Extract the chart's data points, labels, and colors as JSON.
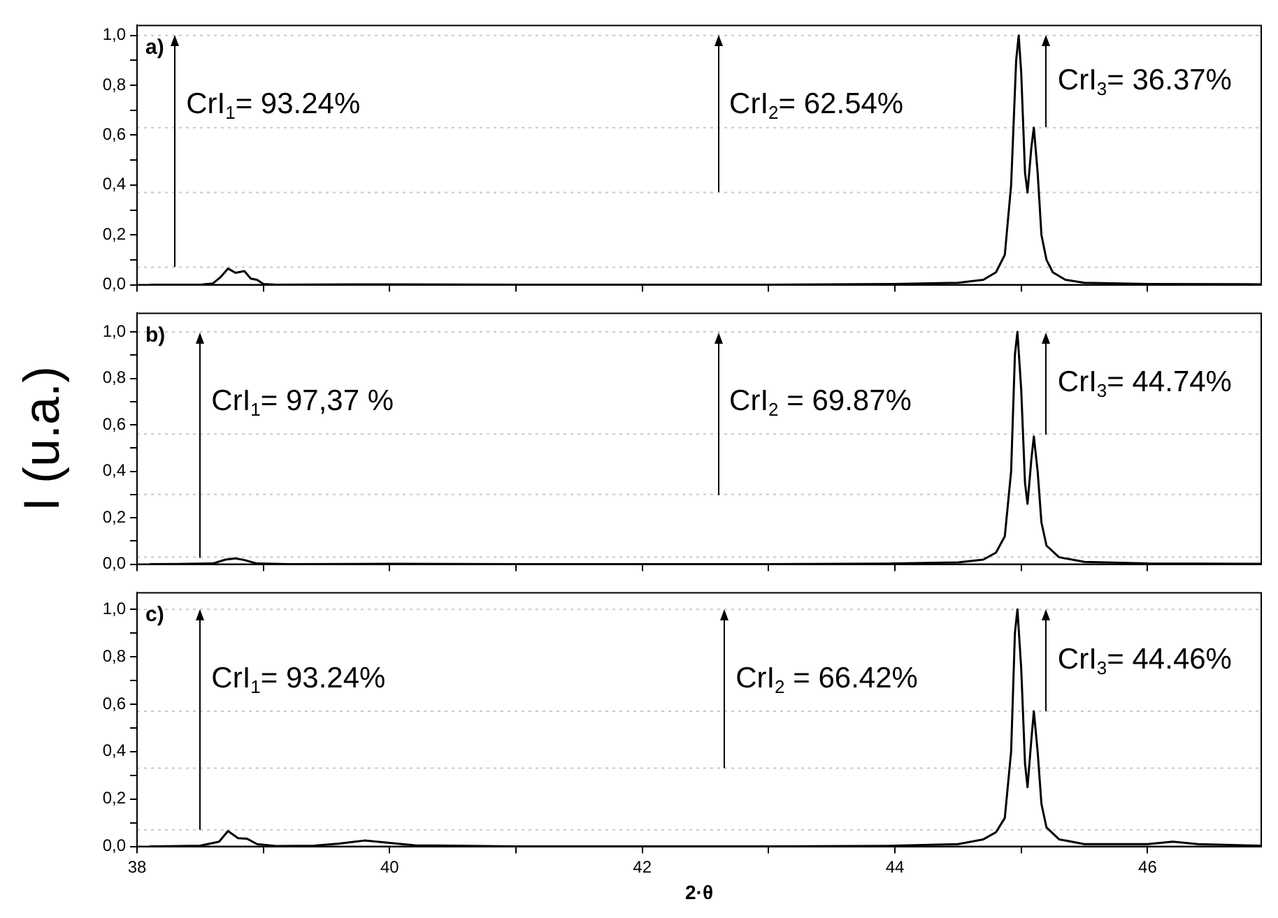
{
  "chart_data": [
    {
      "type": "line",
      "xlim": [
        38,
        46.9
      ],
      "ylim": [
        0,
        1.04
      ],
      "xticks": [
        38,
        {
          "value": 39,
          "label": null
        },
        40,
        {
          "value": 41,
          "label": null
        },
        42,
        {
          "value": 43,
          "label": null
        },
        44,
        {
          "value": 45,
          "label": null
        },
        46
      ],
      "yticks": [
        {
          "value": 0,
          "label": "0,0"
        },
        {
          "value": 0.1,
          "label": null
        },
        {
          "value": 0.2,
          "label": "0,2"
        },
        {
          "value": 0.3,
          "label": null
        },
        {
          "value": 0.4,
          "label": "0,4"
        },
        {
          "value": 0.5,
          "label": null
        },
        {
          "value": 0.6,
          "label": "0,6"
        },
        {
          "value": 0.7,
          "label": null
        },
        {
          "value": 0.8,
          "label": "0,8"
        },
        {
          "value": 0.9,
          "label": null
        },
        {
          "value": 1,
          "label": "1,0"
        }
      ],
      "tick_labels": "y",
      "series": [
        {
          "color": "#000000",
          "x": [
            38.1,
            38.5,
            38.6,
            38.66,
            38.72,
            38.78,
            38.85,
            38.9,
            38.95,
            39,
            39.1,
            40,
            41,
            42,
            43,
            44,
            44.5,
            44.7,
            44.8,
            44.87,
            44.92,
            44.96,
            44.98,
            45,
            45.03,
            45.05,
            45.08,
            45.1,
            45.13,
            45.16,
            45.2,
            45.25,
            45.35,
            45.5,
            46,
            46.9
          ],
          "values": [
            0,
            0,
            0.005,
            0.03,
            0.065,
            0.048,
            0.055,
            0.025,
            0.02,
            0.003,
            0,
            0.002,
            0,
            0,
            0,
            0.003,
            0.008,
            0.02,
            0.05,
            0.12,
            0.4,
            0.9,
            1,
            0.85,
            0.45,
            0.37,
            0.55,
            0.63,
            0.45,
            0.2,
            0.1,
            0.05,
            0.02,
            0.008,
            0.003,
            0.002
          ]
        }
      ],
      "ref_lines": [
        {
          "axis": "y",
          "value": 1,
          "color": "#c8c8c8",
          "line_style": "dotted"
        },
        {
          "axis": "y",
          "value": 0.07,
          "color": "#c8c8c8",
          "line_style": "dotted"
        },
        {
          "axis": "y",
          "value": 0.37,
          "color": "#c8c8c8",
          "line_style": "dotted"
        },
        {
          "axis": "y",
          "value": 0.63,
          "color": "#c8c8c8",
          "line_style": "dotted"
        }
      ],
      "annotations": [
        "a)",
        {
          "text": "CrI$_{1}$= 93.24%",
          "x": 38.3,
          "y": 1
        },
        {
          "text": "CrI$_{2}$= 62.54%",
          "x": 42.6,
          "y": 1
        },
        {
          "text": "CrI$_{3}$= 36.37%",
          "x": 45.2,
          "y": 1
        }
      ]
    },
    {
      "type": "line",
      "xlim": [
        38,
        46.9
      ],
      "ylim": [
        0,
        1.08
      ],
      "ylabel": "I (u.a.)",
      "xticks": [
        38,
        {
          "value": 39,
          "label": null
        },
        40,
        {
          "value": 41,
          "label": null
        },
        42,
        {
          "value": 43,
          "label": null
        },
        44,
        {
          "value": 45,
          "label": null
        },
        46
      ],
      "yticks": [
        {
          "value": 0,
          "label": "0,0"
        },
        {
          "value": 0.1,
          "label": null
        },
        {
          "value": 0.2,
          "label": "0,2"
        },
        {
          "value": 0.3,
          "label": null
        },
        {
          "value": 0.4,
          "label": "0,4"
        },
        {
          "value": 0.5,
          "label": null
        },
        {
          "value": 0.6,
          "label": "0,6"
        },
        {
          "value": 0.7,
          "label": null
        },
        {
          "value": 0.8,
          "label": "0,8"
        },
        {
          "value": 0.9,
          "label": null
        },
        {
          "value": 1,
          "label": "1,0"
        }
      ],
      "tick_labels": "y",
      "series": [
        {
          "color": "#000000",
          "x": [
            38.1,
            38.6,
            38.7,
            38.78,
            38.85,
            38.95,
            39.2,
            40,
            41,
            43,
            44,
            44.5,
            44.7,
            44.8,
            44.87,
            44.92,
            44.95,
            44.97,
            45,
            45.03,
            45.05,
            45.08,
            45.1,
            45.13,
            45.16,
            45.2,
            45.3,
            45.5,
            46,
            46.9
          ],
          "values": [
            0,
            0.003,
            0.02,
            0.025,
            0.018,
            0.003,
            0,
            0.002,
            0,
            0,
            0.003,
            0.008,
            0.02,
            0.05,
            0.12,
            0.4,
            0.9,
            1,
            0.75,
            0.35,
            0.26,
            0.45,
            0.55,
            0.4,
            0.18,
            0.08,
            0.03,
            0.01,
            0.003,
            0.002
          ]
        }
      ],
      "ref_lines": [
        {
          "axis": "y",
          "value": 1,
          "color": "#c8c8c8",
          "line_style": "dotted"
        },
        {
          "axis": "y",
          "value": 0.03,
          "color": "#c8c8c8",
          "line_style": "dotted"
        },
        {
          "axis": "y",
          "value": 0.3,
          "color": "#c8c8c8",
          "line_style": "dotted"
        },
        {
          "axis": "y",
          "value": 0.56,
          "color": "#c8c8c8",
          "line_style": "dotted"
        }
      ],
      "annotations": [
        "b)",
        {
          "text": "CrI$_{1}$= 97,37 %",
          "x": 38.5,
          "y": 1
        },
        {
          "text": "CrI$_{2}$ = 69.87%",
          "x": 42.6,
          "y": 1
        },
        {
          "text": "CrI$_{3}$= 44.74%",
          "x": 45.2,
          "y": 1
        }
      ]
    },
    {
      "type": "line",
      "xlim": [
        38,
        46.9
      ],
      "ylim": [
        0,
        1.07
      ],
      "xlabel": "2·θ",
      "xticks": [
        38,
        {
          "value": 39,
          "label": null
        },
        40,
        {
          "value": 41,
          "label": null
        },
        42,
        {
          "value": 43,
          "label": null
        },
        44,
        {
          "value": 45,
          "label": null
        },
        46
      ],
      "yticks": [
        {
          "value": 0,
          "label": "0,0"
        },
        {
          "value": 0.1,
          "label": null
        },
        {
          "value": 0.2,
          "label": "0,2"
        },
        {
          "value": 0.3,
          "label": null
        },
        {
          "value": 0.4,
          "label": "0,4"
        },
        {
          "value": 0.5,
          "label": null
        },
        {
          "value": 0.6,
          "label": "0,6"
        },
        {
          "value": 0.7,
          "label": null
        },
        {
          "value": 0.8,
          "label": "0,8"
        },
        {
          "value": 0.9,
          "label": null
        },
        {
          "value": 1,
          "label": "1,0"
        }
      ],
      "series": [
        {
          "color": "#000000",
          "x": [
            38.1,
            38.5,
            38.65,
            38.72,
            38.8,
            38.87,
            38.95,
            39.1,
            39.4,
            39.6,
            39.8,
            40,
            40.2,
            40.5,
            41,
            43,
            44,
            44.5,
            44.7,
            44.8,
            44.87,
            44.92,
            44.95,
            44.97,
            45,
            45.03,
            45.05,
            45.08,
            45.1,
            45.13,
            45.16,
            45.2,
            45.3,
            45.5,
            46,
            46.2,
            46.4,
            46.9
          ],
          "values": [
            0,
            0.003,
            0.02,
            0.065,
            0.035,
            0.033,
            0.01,
            0.002,
            0.003,
            0.012,
            0.025,
            0.015,
            0.005,
            0.003,
            0,
            0,
            0.003,
            0.01,
            0.03,
            0.06,
            0.12,
            0.4,
            0.9,
            1,
            0.75,
            0.35,
            0.25,
            0.45,
            0.57,
            0.4,
            0.18,
            0.08,
            0.03,
            0.01,
            0.01,
            0.02,
            0.01,
            0.003
          ]
        }
      ],
      "ref_lines": [
        {
          "axis": "y",
          "value": 1,
          "color": "#c8c8c8",
          "line_style": "dotted"
        },
        {
          "axis": "y",
          "value": 0.07,
          "color": "#c8c8c8",
          "line_style": "dotted"
        },
        {
          "axis": "y",
          "value": 0.33,
          "color": "#c8c8c8",
          "line_style": "dotted"
        },
        {
          "axis": "y",
          "value": 0.57,
          "color": "#c8c8c8",
          "line_style": "dotted"
        }
      ],
      "annotations": [
        "c)",
        {
          "text": "CrI$_{1}$= 93.24%",
          "x": 38.5,
          "y": 1
        },
        {
          "text": "CrI$_{2}$ = 66.42%",
          "x": 42.65,
          "y": 1
        },
        {
          "text": "CrI$_{3}$= 44.46%",
          "x": 45.2,
          "y": 1
        }
      ]
    }
  ]
}
